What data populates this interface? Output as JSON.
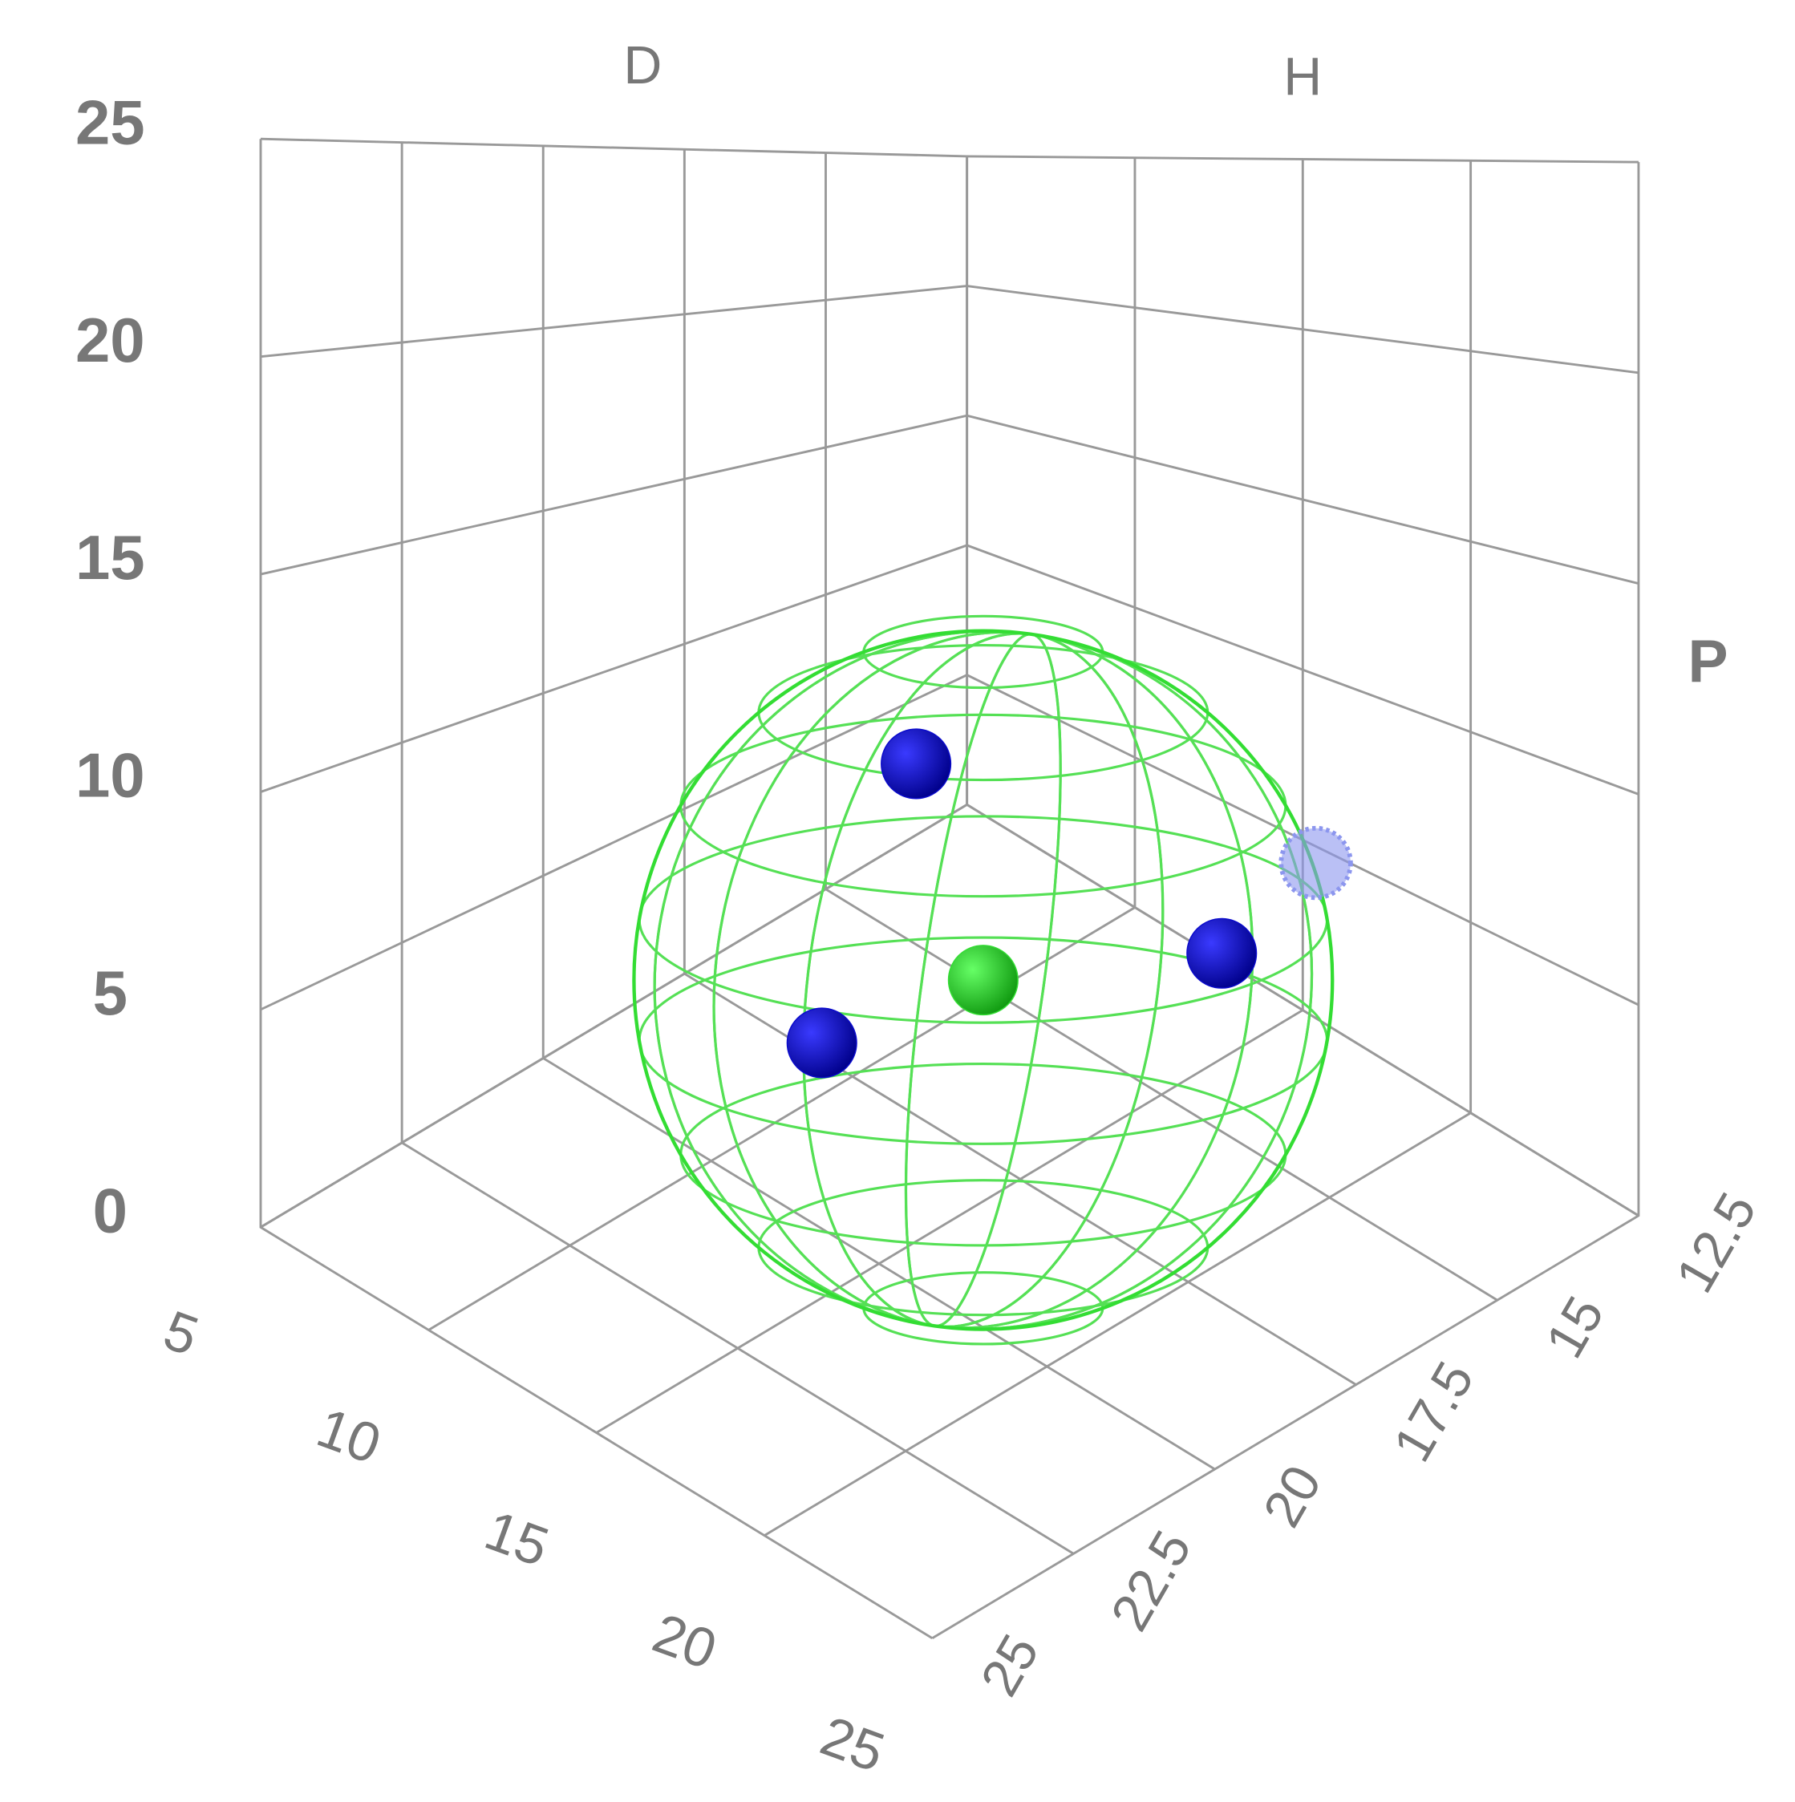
{
  "chart_data": {
    "type": "scatter3d",
    "x_label": "D",
    "y_label": "P",
    "z_label": "H",
    "xlim": [
      5,
      25
    ],
    "xticks": [
      5,
      10,
      15,
      20,
      25
    ],
    "ylim": [
      0,
      25
    ],
    "yticks": [
      0,
      5,
      10,
      15,
      20,
      25
    ],
    "zlim": [
      12.5,
      25
    ],
    "zticks": [
      12.5,
      15,
      17.5,
      20,
      22.5,
      25
    ],
    "grid": true,
    "sphere": {
      "center": [
        16,
        6,
        18.75
      ],
      "radius": 8,
      "color": "#33dd33"
    },
    "series": [
      {
        "color": "#0a0acc",
        "x": [
          14,
          13.3,
          21
        ],
        "y": [
          10.4,
          4.3,
          7.6
        ],
        "z": [
          18.75,
          20,
          17.5
        ]
      },
      {
        "color": "#8c96ee",
        "x": [
          21.7
        ],
        "y": [
          9.2
        ],
        "z": [
          16.25
        ]
      }
    ]
  }
}
